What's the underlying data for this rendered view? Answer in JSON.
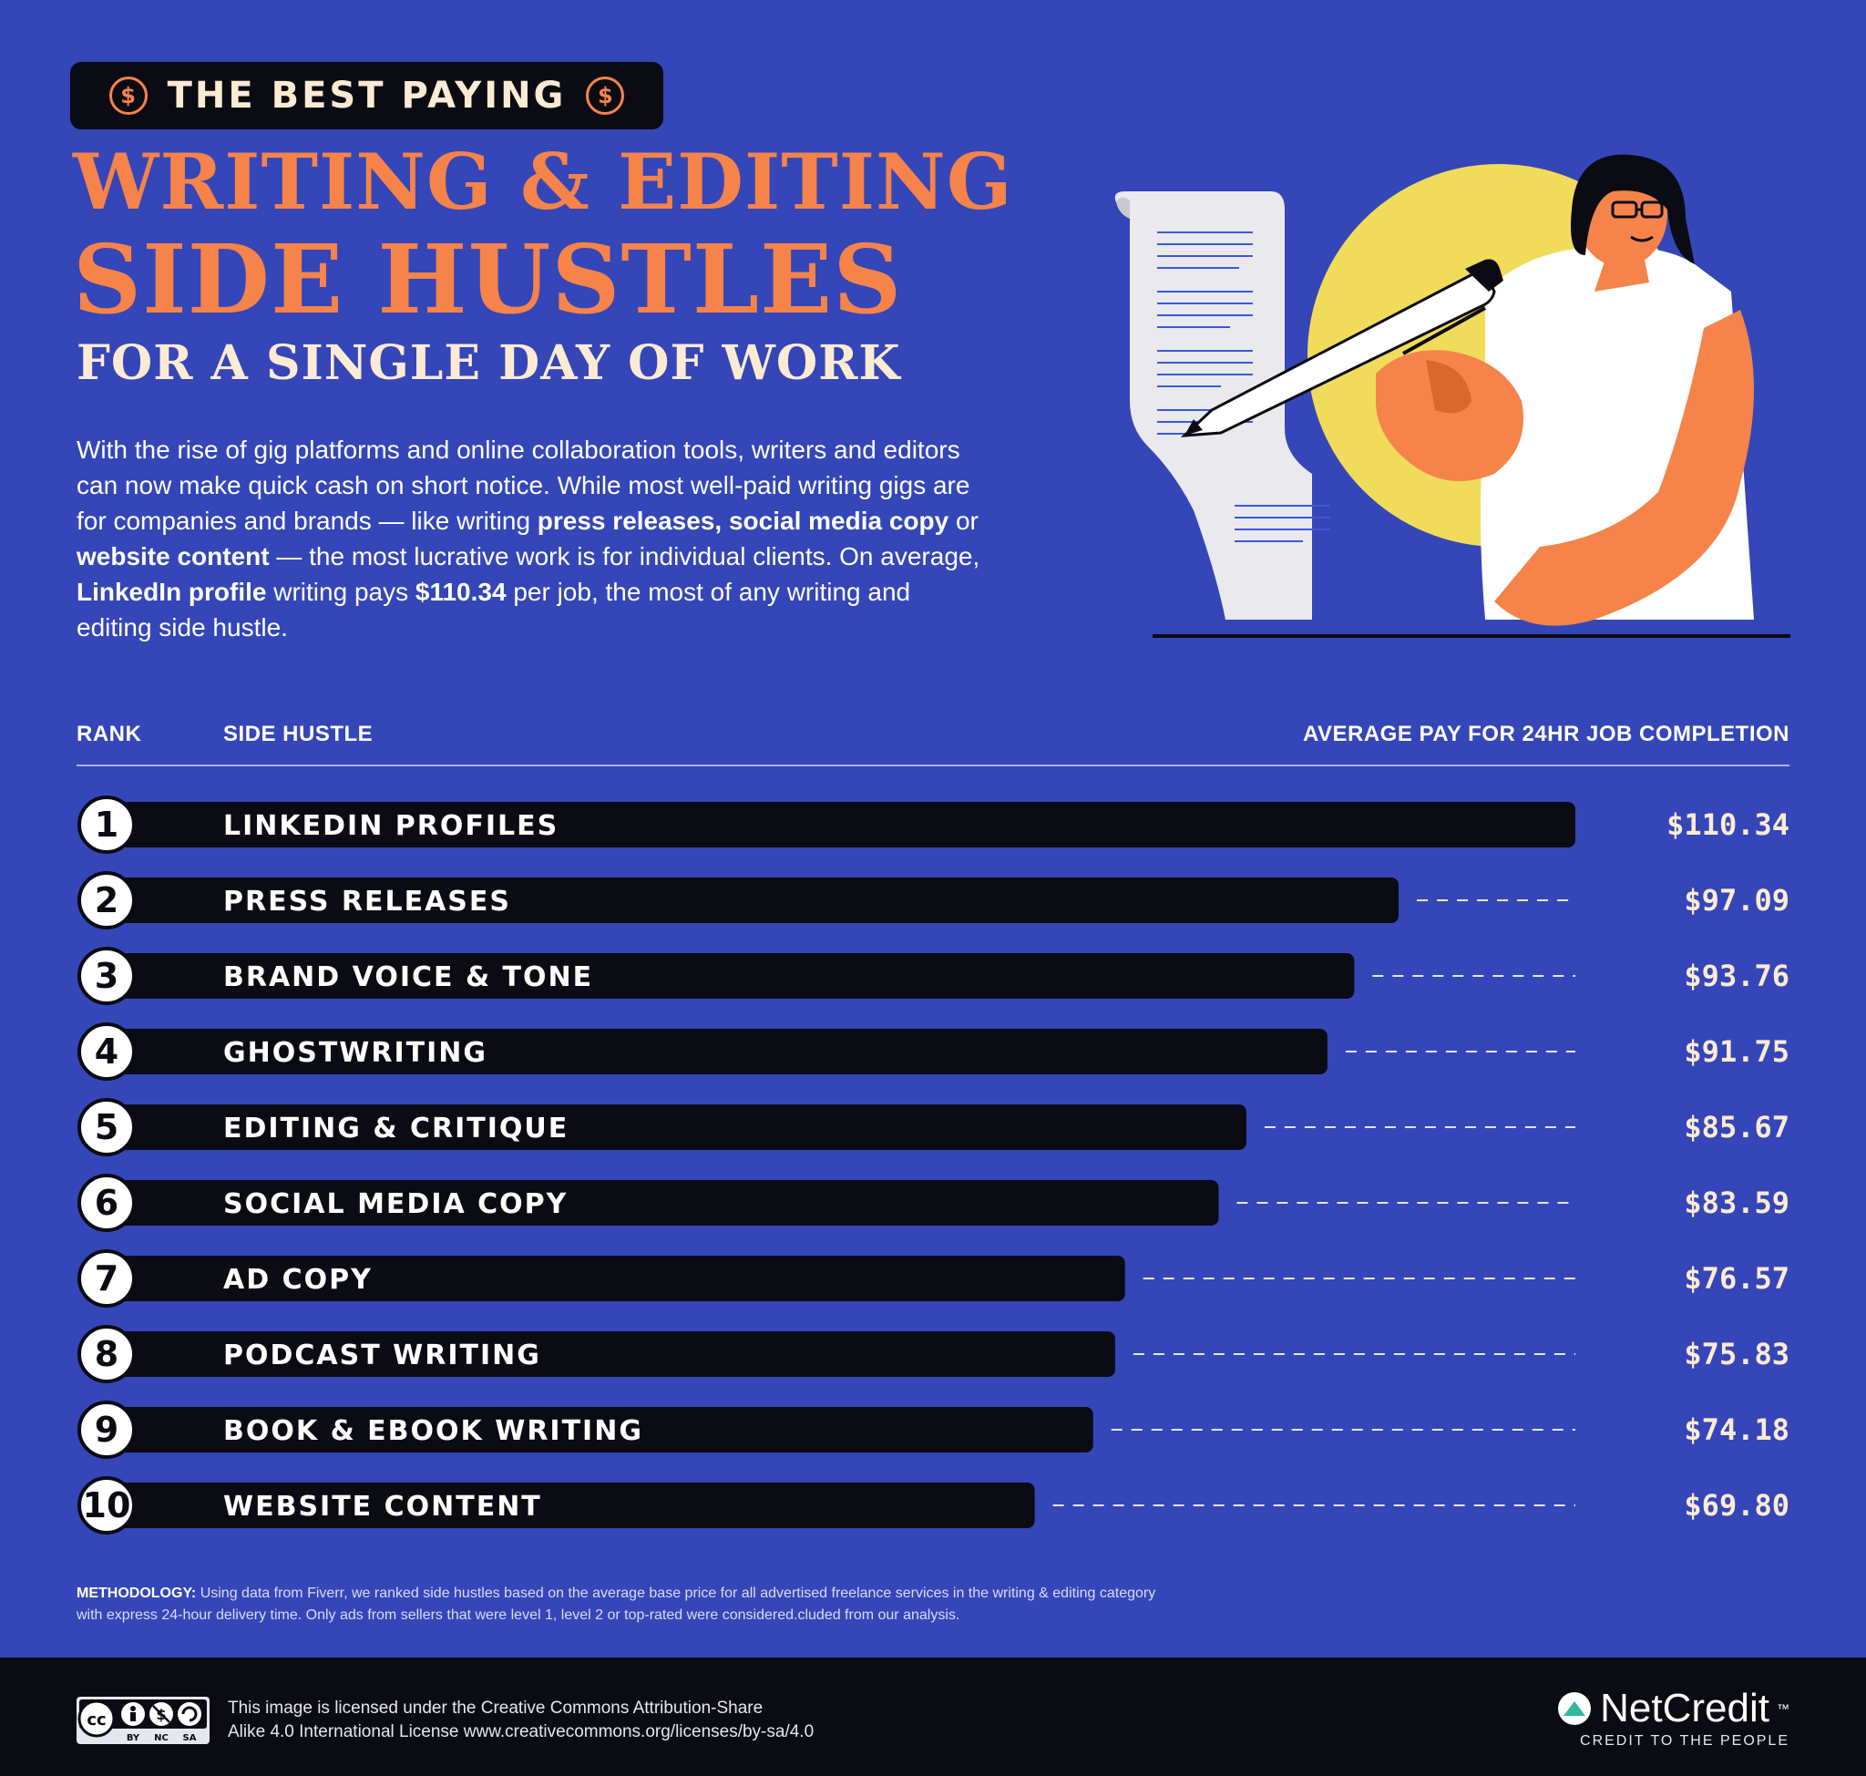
{
  "header": {
    "pill_text": "THE BEST PAYING",
    "coin_symbol": "$",
    "title_line1": "WRITING & EDITING",
    "title_line2": "SIDE HUSTLES",
    "title_line3": "FOR A SINGLE DAY OF WORK"
  },
  "intro": {
    "p1": "With the rise of gig platforms and online collaboration tools, writers and editors can now make quick cash on short notice. While most well-paid writing gigs are for companies and brands — like writing ",
    "b1": "press releases,",
    "p2": " ",
    "b2": "social media copy",
    "p3": " or ",
    "b3": "website content",
    "p4": " — the most lucrative work is for individual clients. On average, ",
    "b4": "LinkedIn profile",
    "p5": " writing pays ",
    "b5": "$110.34",
    "p6": " per job, the most of any writing and editing side hustle."
  },
  "table_header": {
    "rank": "RANK",
    "hustle": "SIDE HUSTLE",
    "pay": "AVERAGE PAY FOR 24HR JOB COMPLETION"
  },
  "chart_data": {
    "type": "bar",
    "orientation": "horizontal",
    "ranks": [
      "1",
      "2",
      "3",
      "4",
      "5",
      "6",
      "7",
      "8",
      "9",
      "10"
    ],
    "categories": [
      "LINKEDIN PROFILES",
      "PRESS RELEASES",
      "BRAND VOICE & TONE",
      "GHOSTWRITING",
      "EDITING & CRITIQUE",
      "SOCIAL MEDIA COPY",
      "AD COPY",
      "PODCAST WRITING",
      "BOOK & EBOOK WRITING",
      "WEBSITE CONTENT"
    ],
    "values": [
      110.34,
      97.09,
      93.76,
      91.75,
      85.67,
      83.59,
      76.57,
      75.83,
      74.18,
      69.8
    ],
    "value_labels": [
      "$110.34",
      "$97.09",
      "$93.76",
      "$91.75",
      "$85.67",
      "$83.59",
      "$76.57",
      "$75.83",
      "$74.18",
      "$69.80"
    ],
    "xlim": [
      0,
      110.34
    ],
    "grid": false,
    "bar_color": "#0b0b14"
  },
  "methodology": {
    "label": "METHODOLOGY:",
    "text": " Using data from Fiverr, we ranked side hustles based on the average base price for all advertised freelance services in the writing & editing category with express 24-hour delivery time. Only ads from sellers that were level 1, level 2 or top-rated were considered.cluded from our analysis."
  },
  "footer": {
    "cc_labels": [
      "BY",
      "NC",
      "SA"
    ],
    "license_line1": "This image is licensed under the Creative Commons Attribution-Share",
    "license_line2": "Alike 4.0 International License www.creativecommons.org/licenses/by-sa/4.0",
    "brand_name": "NetCredit",
    "brand_mark": "™",
    "brand_tagline": "CREDIT TO THE PEOPLE"
  },
  "colors": {
    "background": "#3546b8",
    "accent": "#f6834a",
    "cream": "#fcebd2",
    "dark": "#0b0b14",
    "sun": "#f0dc5a",
    "skin": "#f6834a"
  }
}
